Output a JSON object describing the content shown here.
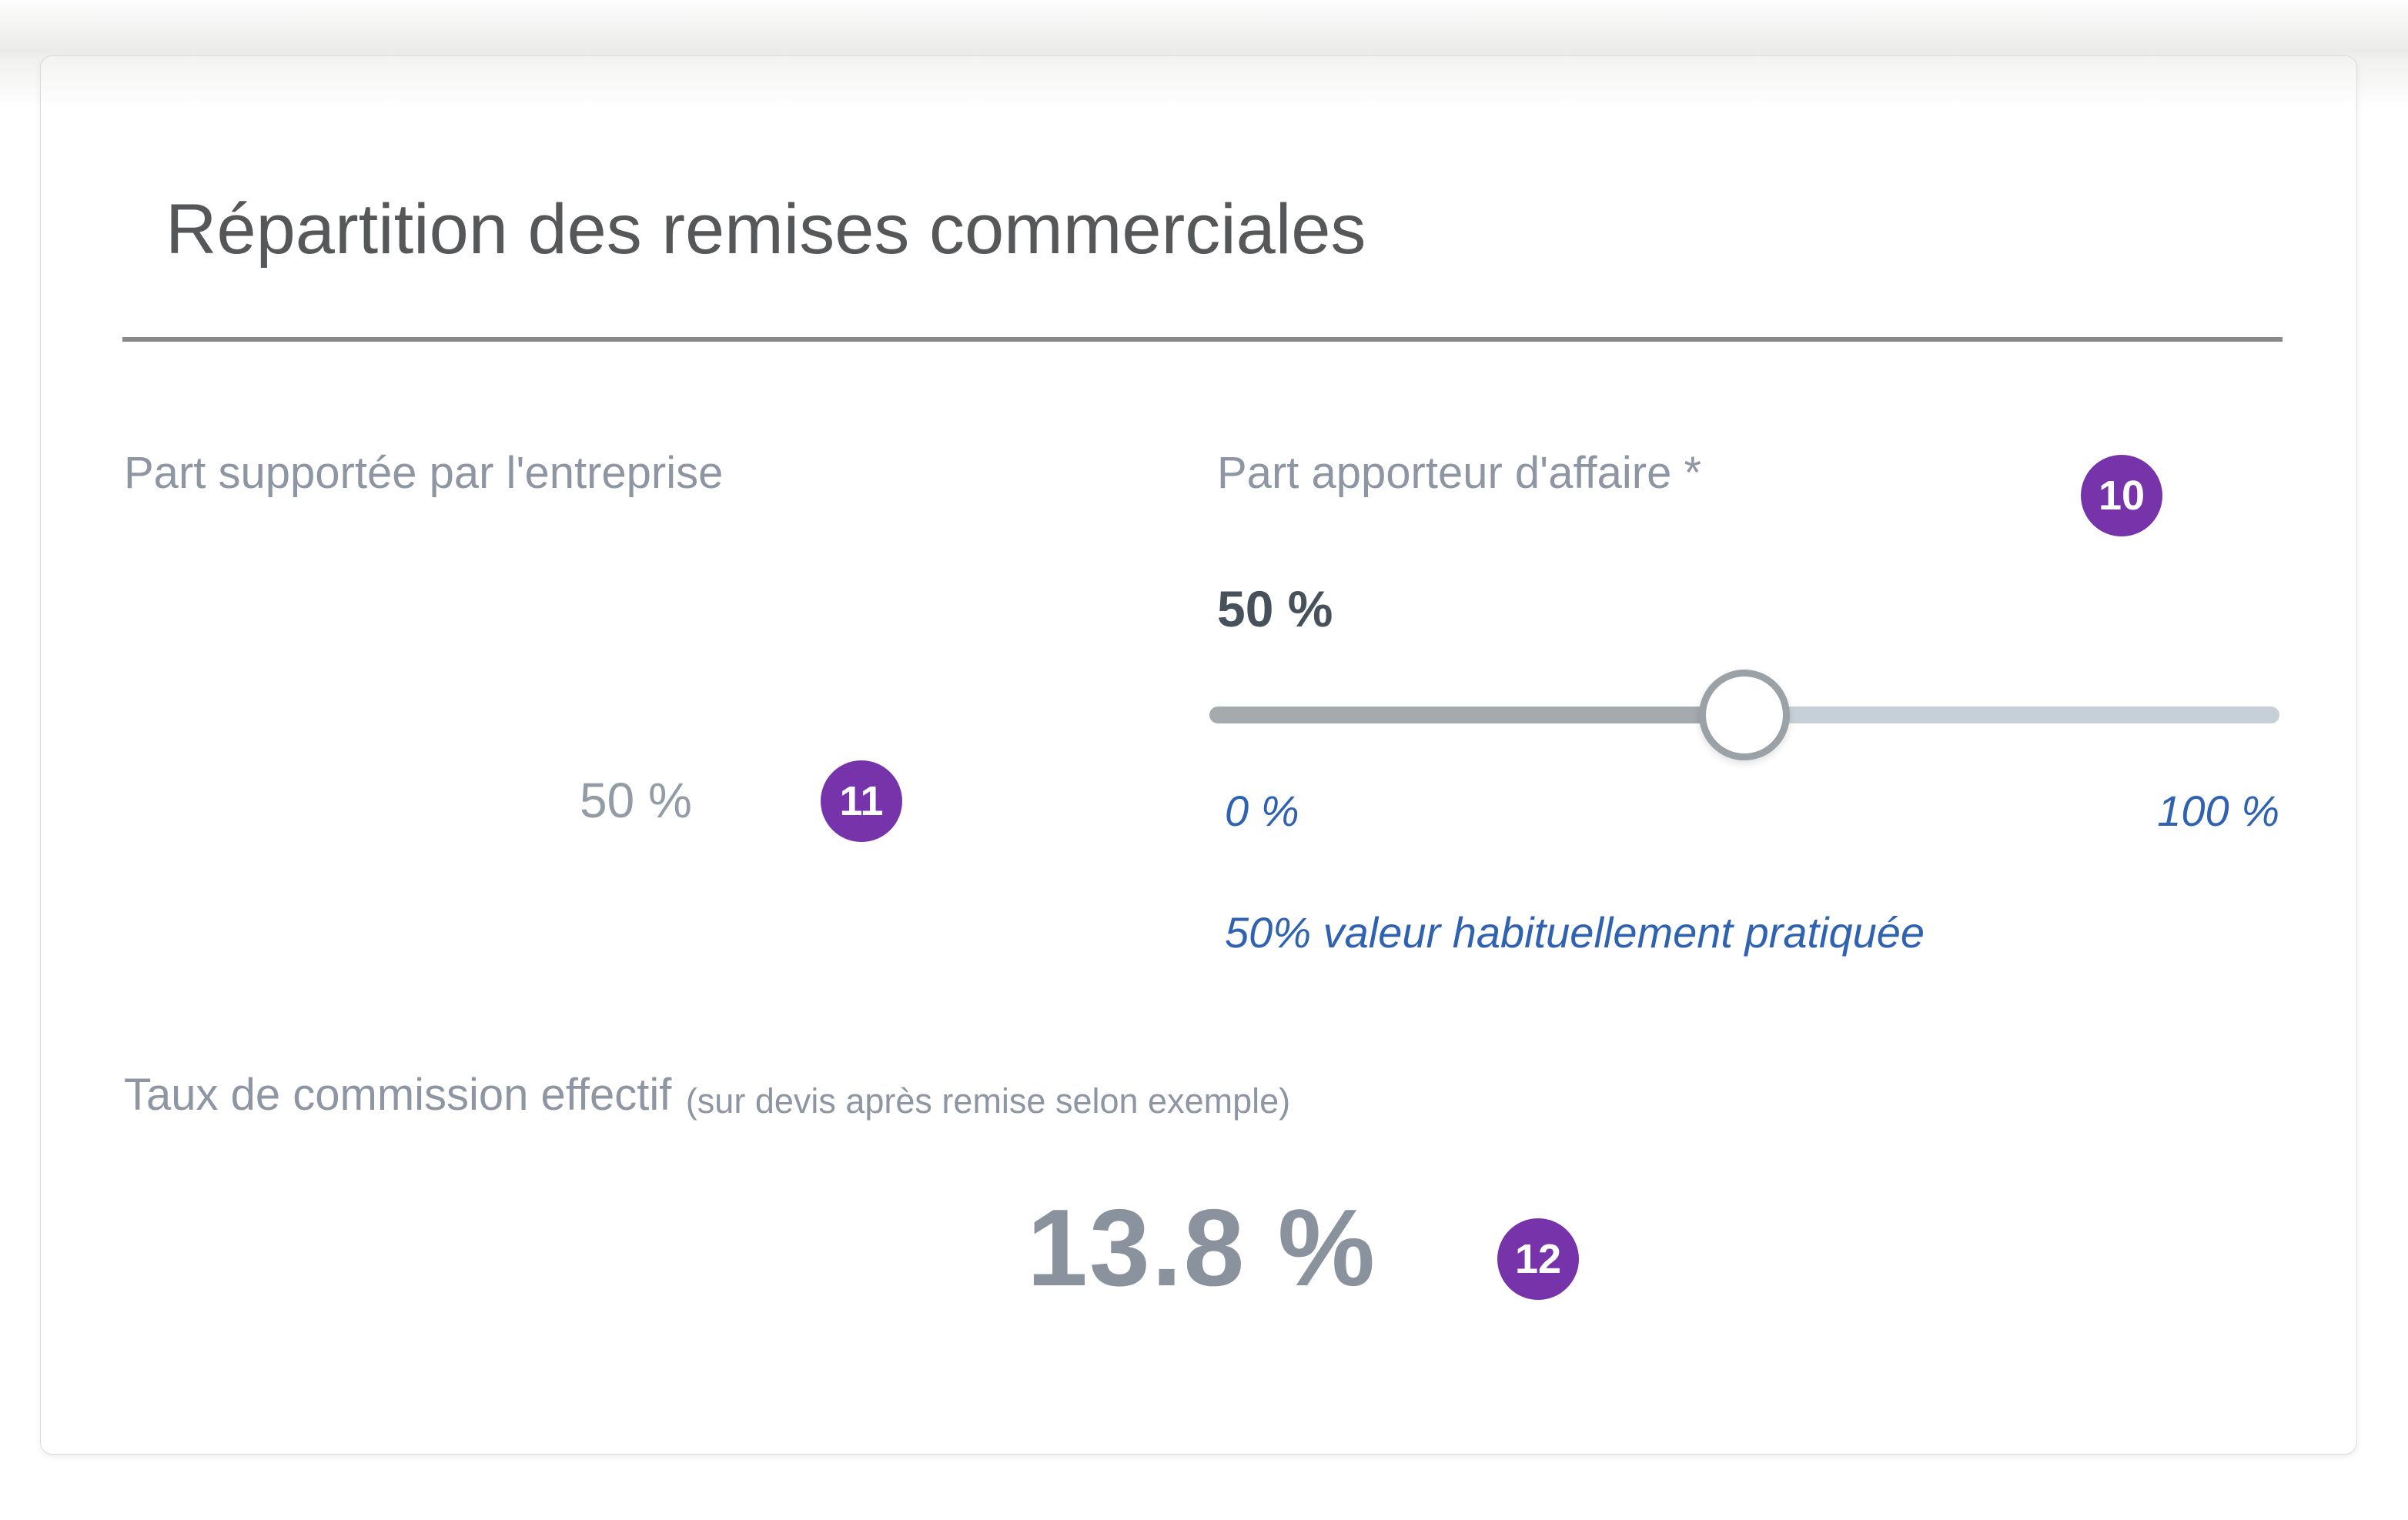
{
  "card": {
    "title": "Répartition des remises commerciales",
    "company_share": {
      "label": "Part supportée par l'entreprise",
      "value": "50 %"
    },
    "broker_share": {
      "label": "Part apporteur d'affaire *",
      "value": "50 %",
      "slider": {
        "min_label": "0 %",
        "max_label": "100 %",
        "percent": 50
      },
      "note": "50% valeur habituellement pratiquée"
    },
    "commission": {
      "label": "Taux de commission effectif",
      "sublabel": "(sur devis après remise selon exemple)",
      "value": "13.8 %"
    }
  },
  "annotations": [
    {
      "label": "10"
    },
    {
      "label": "11"
    },
    {
      "label": "12"
    }
  ],
  "colors": {
    "c-purple": "#7733a9",
    "c-blue": "#2f63b2",
    "c-title": "#565759",
    "c-label": "#8d96a2",
    "c-strong": "#47515b",
    "c-muted-value": "#929ca6",
    "c-big-value": "#8a939d",
    "track-left": "#a5aaaf",
    "track-right": "#c7d0d8",
    "thumb-border": "#9aa1a7"
  }
}
